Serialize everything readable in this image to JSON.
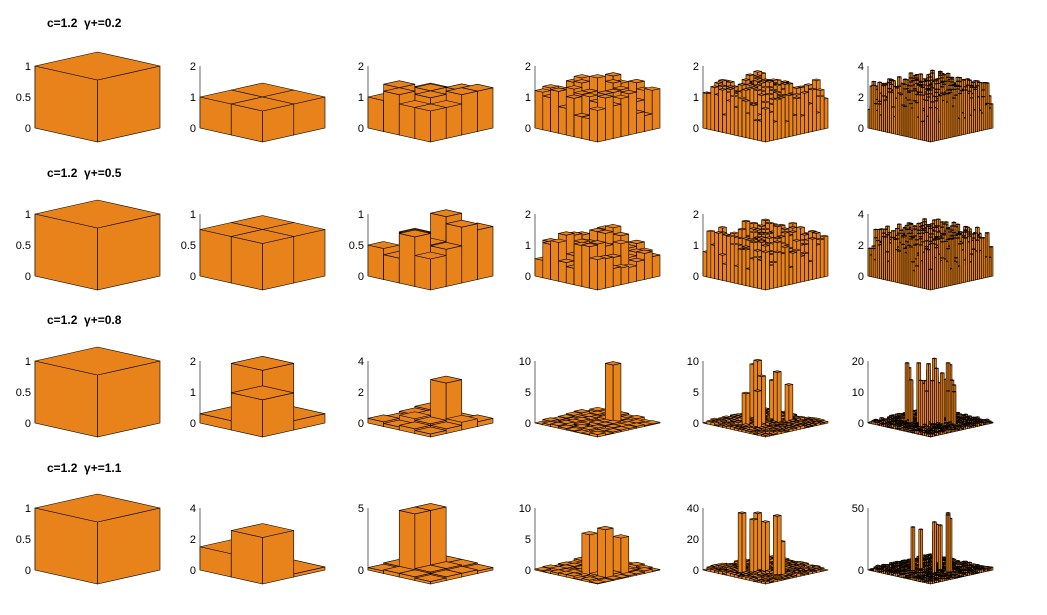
{
  "bar_color": "#e8821a",
  "edge_color": "#000000",
  "chart_data": {
    "type": "bar3d",
    "rows": [
      {
        "title": "c=1.2  γ+=0.2",
        "panels": [
          {
            "n": 1,
            "yticks": [
              "1",
              "0.5",
              "0"
            ],
            "zmax": 1,
            "grid": [
              [
                1
              ]
            ]
          },
          {
            "n": 2,
            "yticks": [
              "2",
              "1",
              "0"
            ],
            "zmax": 2,
            "grid": [
              [
                1,
                1
              ],
              [
                1,
                1
              ]
            ]
          },
          {
            "n": 4,
            "yticks": [
              "2",
              "1",
              "0"
            ],
            "zmax": 2,
            "grid": [
              [
                1,
                1,
                1.2,
                1.3
              ],
              [
                1,
                1.2,
                1,
                1.3
              ],
              [
                1.3,
                1,
                1.2,
                1
              ],
              [
                1,
                1.3,
                1,
                1
              ]
            ]
          },
          {
            "n": 8,
            "yticks": [
              "2",
              "1",
              "0"
            ],
            "zmax": 2,
            "grid": "rough:0.2:1"
          },
          {
            "n": 16,
            "yticks": [
              "2",
              "1",
              "0"
            ],
            "zmax": 2,
            "grid": "rough:0.2:2"
          },
          {
            "n": 32,
            "yticks": [
              "4",
              "2",
              "0"
            ],
            "zmax": 4,
            "grid": "rough:0.2:3"
          }
        ]
      },
      {
        "title": "c=1.2  γ+=0.5",
        "panels": [
          {
            "n": 1,
            "yticks": [
              "1",
              "0.5",
              "0"
            ],
            "zmax": 1,
            "grid": [
              [
                1
              ]
            ]
          },
          {
            "n": 2,
            "yticks": [
              "1",
              "0.5",
              "0"
            ],
            "zmax": 1,
            "grid": [
              [
                0.75,
                0.75
              ],
              [
                0.75,
                0.75
              ]
            ]
          },
          {
            "n": 4,
            "yticks": [
              "1",
              "0.5",
              "0"
            ],
            "zmax": 1,
            "grid": [
              [
                0.4,
                0.9,
                0.6,
                0.8
              ],
              [
                0.6,
                0.5,
                0.4,
                0.9
              ],
              [
                0.3,
                0.7,
                0.5,
                0.6
              ],
              [
                0.5,
                0.4,
                0.8,
                0.5
              ]
            ]
          },
          {
            "n": 8,
            "yticks": [
              "2",
              "1",
              "0"
            ],
            "zmax": 2,
            "grid": "rough:0.5:4"
          },
          {
            "n": 16,
            "yticks": [
              "2",
              "1",
              "0"
            ],
            "zmax": 2,
            "grid": "rough:0.5:5"
          },
          {
            "n": 32,
            "yticks": [
              "4",
              "2",
              "0"
            ],
            "zmax": 4,
            "grid": "rough:0.5:6"
          }
        ]
      },
      {
        "title": "c=1.2  γ+=0.8",
        "panels": [
          {
            "n": 1,
            "yticks": [
              "1",
              "0.5",
              "0"
            ],
            "zmax": 1,
            "grid": [
              [
                1
              ]
            ]
          },
          {
            "n": 2,
            "yticks": [
              "2",
              "1",
              "0"
            ],
            "zmax": 2,
            "grid": [
              [
                1.7,
                0.3
              ],
              [
                0.3,
                1.2
              ]
            ]
          },
          {
            "n": 4,
            "yticks": [
              "4",
              "2",
              "0"
            ],
            "zmax": 4,
            "grid": [
              [
                0.4,
                0.3,
                0.2,
                0.3
              ],
              [
                0.3,
                0.4,
                2.8,
                0.5
              ],
              [
                0.2,
                0.5,
                0.4,
                0.3
              ],
              [
                0.3,
                0.2,
                0.3,
                0.2
              ]
            ]
          },
          {
            "n": 8,
            "yticks": [
              "10",
              "5",
              "0"
            ],
            "zmax": 10,
            "grid": "rough:0.8:7"
          },
          {
            "n": 16,
            "yticks": [
              "10",
              "5",
              "0"
            ],
            "zmax": 10,
            "grid": "rough:0.8:8"
          },
          {
            "n": 32,
            "yticks": [
              "20",
              "10",
              "0"
            ],
            "zmax": 20,
            "grid": "rough:0.8:9"
          }
        ]
      },
      {
        "title": "c=1.2  γ+=1.1",
        "panels": [
          {
            "n": 1,
            "yticks": [
              "1",
              "0.5",
              "0"
            ],
            "zmax": 1,
            "grid": [
              [
                1
              ]
            ]
          },
          {
            "n": 2,
            "yticks": [
              "4",
              "2",
              "0"
            ],
            "zmax": 4,
            "grid": [
              [
                0.2,
                0.2
              ],
              [
                1.5,
                3.0
              ]
            ]
          },
          {
            "n": 4,
            "yticks": [
              "5",
              "0"
            ],
            "zmax": 5,
            "grid": [
              [
                0.3,
                0.3,
                0.3,
                0.2
              ],
              [
                0.4,
                4.8,
                0.4,
                0.3
              ],
              [
                0.3,
                4.8,
                0.4,
                0.3
              ],
              [
                0.2,
                0.3,
                0.3,
                0.2
              ]
            ]
          },
          {
            "n": 8,
            "yticks": [
              "10",
              "5",
              "0"
            ],
            "zmax": 10,
            "grid": "rough:1.1:10"
          },
          {
            "n": 16,
            "yticks": [
              "40",
              "20",
              "0"
            ],
            "zmax": 40,
            "grid": "rough:1.1:11"
          },
          {
            "n": 32,
            "yticks": [
              "50",
              "0"
            ],
            "zmax": 50,
            "grid": "rough:1.1:12"
          }
        ]
      }
    ]
  }
}
